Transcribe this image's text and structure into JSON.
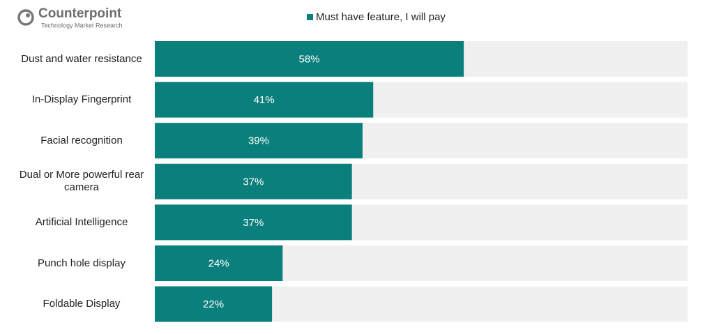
{
  "brand": {
    "name": "Counterpoint",
    "tagline": "Technology Market Research"
  },
  "chart_data": {
    "type": "barh",
    "categories": [
      "Dust and water resistance",
      "In-Display Fingerprint",
      "Facial recognition",
      "Dual or More powerful rear camera",
      "Artificial Intelligence",
      "Punch hole display",
      "Foldable Display"
    ],
    "series": [
      {
        "name": "Must have feature, I will pay",
        "color": "#0b7f7c",
        "values": [
          58,
          41,
          39,
          37,
          37,
          24,
          22
        ],
        "value_labels": [
          "58%",
          "41%",
          "39%",
          "37%",
          "37%",
          "24%",
          "22%"
        ]
      }
    ],
    "xlim": [
      0,
      100
    ],
    "track_color": "#f0f0f0",
    "legend": "top"
  }
}
